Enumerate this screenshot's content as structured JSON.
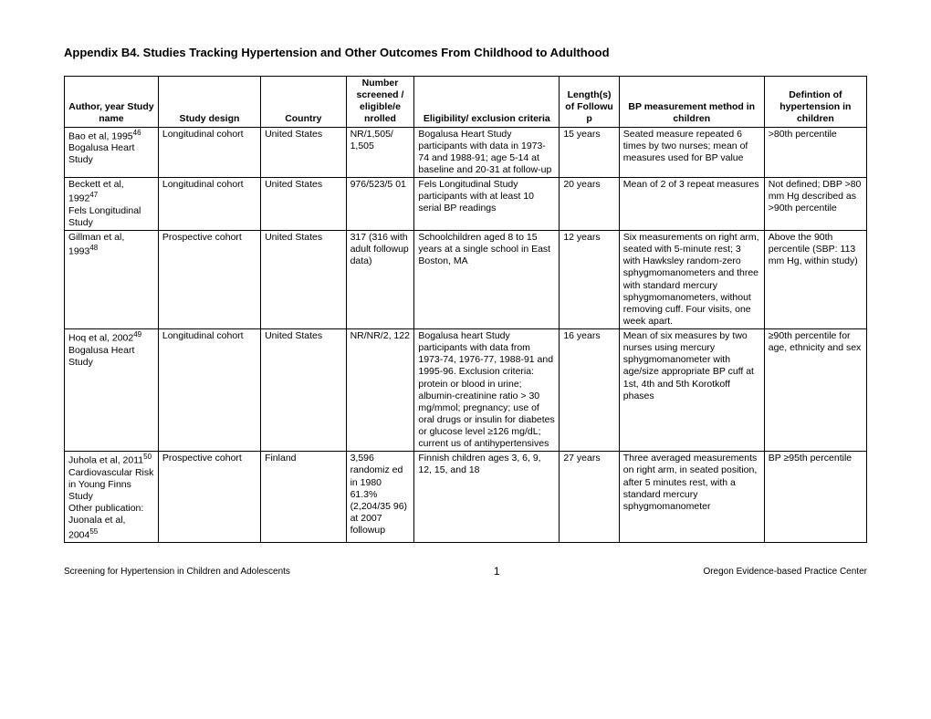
{
  "title": "Appendix B4. Studies Tracking Hypertension and Other Outcomes From Childhood to Adulthood",
  "headers": {
    "author": "Author, year\nStudy name",
    "design": "Study design",
    "country": "Country",
    "number": "Number screened / eligible/e nrolled",
    "elig": "Eligibility/ exclusion criteria",
    "length": "Length(s) of Followu p",
    "method": "BP measurement method in children",
    "def": "Defintion of hypertension in children"
  },
  "rows": [
    {
      "author_html": "Bao et al, 1995<span class='sup'>46</span><br>Bogalusa Heart Study",
      "design": "Longitudinal cohort",
      "country": "United States",
      "number": "NR/1,505/ 1,505",
      "elig": "Bogalusa Heart Study participants with data in 1973-74 and 1988-91; age 5-14 at baseline and 20-31 at follow-up",
      "length": "15 years",
      "method": "Seated measure repeated 6 times by two nurses; mean of measures used for BP value",
      "def": ">80th percentile"
    },
    {
      "author_html": "Beckett et al, 1992<span class='sup'>47</span><br>Fels Longitudinal Study",
      "design": "Longitudinal cohort",
      "country": "United States",
      "number": "976/523/5 01",
      "elig": "Fels Longitudinal Study participants with at least 10 serial BP readings",
      "length": "20 years",
      "method": "Mean of 2 of 3 repeat measures",
      "def": "Not defined; DBP >80 mm Hg described as >90th percentile"
    },
    {
      "author_html": "Gillman et al, 1993<span class='sup'>48</span>",
      "design": "Prospective cohort",
      "country": "United States",
      "number": "317 (316 with adult followup data)",
      "elig": "Schoolchildren aged 8 to 15 years at a single school in East Boston, MA",
      "length": "12 years",
      "method": "Six measurements on right arm, seated with 5-minute rest; 3 with Hawksley random-zero sphygmomanometers and three with standard mercury sphygmomanometers, without removing cuff. Four visits, one week apart.",
      "def": "Above the 90th percentile (SBP: 113 mm Hg, within study)"
    },
    {
      "author_html": "Hoq et al, 2002<span class='sup'>49</span><br>Bogalusa Heart Study",
      "design": "Longitudinal cohort",
      "country": "United States",
      "number": "NR/NR/2, 122",
      "elig": "Bogalusa heart Study participants with data from 1973-74, 1976-77, 1988-91 and 1995-96. Exclusion criteria: protein or blood in urine; albumin-creatinine ratio > 30 mg/mmol; pregnancy; use of oral drugs or insulin for diabetes or glucose level ≥126 mg/dL; current us of antihypertensives",
      "length": "16 years",
      "method": "Mean of six measures by two nurses using mercury sphygmomanometer with age/size appropriate BP cuff at 1st, 4th and 5th Korotkoff phases",
      "def": "≥90th percentile for age, ethnicity and sex"
    },
    {
      "author_html": "Juhola et al, 2011<span class='sup'>50</span><br>Cardiovascular Risk in Young Finns Study<br>Other publication: Juonala et al, 2004<span class='sup'>55</span>",
      "design": "Prospective cohort",
      "country": "Finland",
      "number": "3,596 randomiz ed in 1980 61.3% (2,204/35 96) at 2007 followup",
      "elig": "Finnish children ages 3, 6, 9, 12, 15, and 18",
      "length": "27 years",
      "method": "Three averaged measurements on right arm, in seated position, after 5 minutes rest, with a standard mercury sphygmomanometer",
      "def": "BP ≥95th percentile"
    }
  ],
  "footer": {
    "left": "Screening for Hypertension in Children and Adolescents",
    "page": "1",
    "right": "Oregon Evidence-based Practice Center"
  }
}
